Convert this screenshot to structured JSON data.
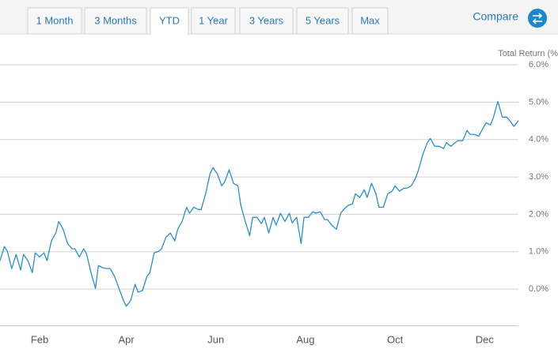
{
  "tabs": [
    "1 Month",
    "3 Months",
    "YTD",
    "1 Year",
    "3 Years",
    "5 Years",
    "Max"
  ],
  "selected_tab": "YTD",
  "compare": "Compare",
  "chart_data": {
    "type": "line",
    "y_label": "Total Return (%",
    "color": "#2a8dd0",
    "grid": true,
    "xlim": [
      4,
      357
    ],
    "ylim": [
      -1,
      6
    ],
    "xticks": [
      {
        "value": 31,
        "label": "Feb"
      },
      {
        "value": 90,
        "label": "Apr"
      },
      {
        "value": 151,
        "label": "Jun"
      },
      {
        "value": 212,
        "label": "Aug"
      },
      {
        "value": 273,
        "label": "Oct"
      },
      {
        "value": 334,
        "label": "Dec"
      }
    ],
    "yticks": [
      {
        "value": 0,
        "label": "0.0%"
      },
      {
        "value": 1,
        "label": "1.0%"
      },
      {
        "value": 2,
        "label": "2.0%"
      },
      {
        "value": 3,
        "label": "3.0%"
      },
      {
        "value": 4,
        "label": "4.0%"
      },
      {
        "value": 5,
        "label": "5.0%"
      },
      {
        "value": 6,
        "label": "6.0%"
      }
    ],
    "x": [
      4,
      7,
      9,
      12,
      15,
      18,
      20,
      23,
      26,
      28,
      31,
      34,
      36,
      39,
      42,
      44,
      47,
      50,
      53,
      55,
      58,
      61,
      63,
      66,
      69,
      71,
      74,
      77,
      79,
      82,
      85,
      88,
      90,
      93,
      96,
      98,
      101,
      104,
      106,
      109,
      112,
      114,
      117,
      120,
      123,
      125,
      128,
      131,
      133,
      136,
      139,
      141,
      144,
      147,
      149,
      152,
      155,
      157,
      160,
      163,
      166,
      168,
      171,
      174,
      176,
      179,
      182,
      184,
      187,
      190,
      192,
      195,
      198,
      201,
      203,
      206,
      209,
      211,
      214,
      217,
      219,
      222,
      225,
      227,
      230,
      233,
      236,
      238,
      241,
      244,
      246,
      249,
      252,
      254,
      257,
      260,
      262,
      265,
      268,
      271,
      273,
      276,
      279,
      281,
      284,
      287,
      289,
      292,
      295,
      297,
      300,
      303,
      306,
      308,
      311,
      314,
      316,
      319,
      322,
      324,
      327,
      330,
      332,
      335,
      338,
      340,
      343,
      346,
      349,
      351,
      354,
      357
    ],
    "values": [
      0.76,
      1.14,
      1.01,
      0.55,
      0.93,
      0.51,
      0.93,
      0.76,
      0.44,
      0.97,
      0.86,
      0.97,
      0.76,
      1.29,
      1.5,
      1.81,
      1.6,
      1.22,
      1.08,
      1.08,
      0.86,
      1.08,
      0.93,
      0.44,
      0.02,
      0.63,
      0.57,
      0.55,
      0.55,
      0.34,
      0.02,
      -0.3,
      -0.46,
      -0.3,
      0.13,
      -0.08,
      -0.04,
      0.34,
      0.44,
      0.97,
      1.01,
      1.08,
      1.39,
      1.5,
      1.29,
      1.6,
      1.81,
      2.19,
      2.03,
      2.19,
      2.13,
      2.13,
      2.55,
      3.08,
      3.25,
      3.08,
      2.76,
      2.87,
      3.19,
      2.83,
      2.76,
      2.24,
      1.81,
      1.43,
      1.92,
      1.92,
      1.75,
      1.92,
      1.5,
      1.92,
      1.71,
      2.03,
      1.81,
      2.03,
      1.77,
      1.92,
      1.22,
      1.92,
      1.92,
      2.07,
      2.03,
      2.07,
      1.86,
      1.86,
      1.71,
      1.6,
      2.03,
      2.13,
      2.24,
      2.28,
      2.55,
      2.45,
      2.66,
      2.45,
      2.83,
      2.55,
      2.19,
      2.19,
      2.55,
      2.62,
      2.76,
      2.62,
      2.7,
      2.7,
      2.76,
      2.97,
      3.19,
      3.61,
      3.92,
      4.03,
      3.82,
      3.82,
      3.76,
      3.92,
      3.82,
      3.92,
      3.97,
      3.97,
      4.24,
      4.14,
      4.14,
      4.09,
      4.24,
      4.45,
      4.39,
      4.6,
      5.02,
      4.6,
      4.6,
      4.51,
      4.35,
      4.51
    ]
  }
}
